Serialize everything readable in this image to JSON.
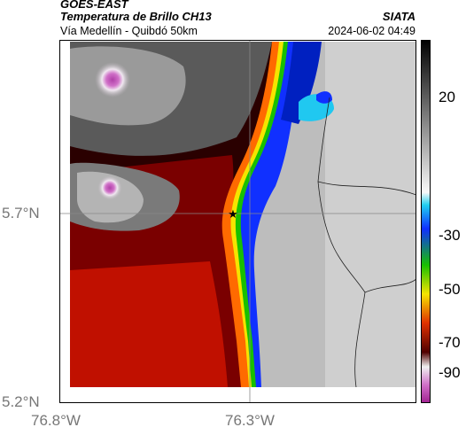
{
  "header": {
    "satellite": "GOES-EAST",
    "product": "Temperatura de Brillo CH13",
    "region": "Vía Medellín - Quibdó 50km",
    "agency": "SIATA",
    "timestamp": "2024-06-02 04:49"
  },
  "axes": {
    "y_ticks": [
      {
        "label": "5.7°N",
        "value": 5.7
      },
      {
        "label": "5.2°N",
        "value": 5.2
      }
    ],
    "x_ticks": [
      {
        "label": "76.8°W",
        "value": -76.8
      },
      {
        "label": "76.3°W",
        "value": -76.3
      }
    ]
  },
  "colorbar": {
    "ticks": [
      {
        "label": "20",
        "value": 20
      },
      {
        "label": "-30",
        "value": -30
      },
      {
        "label": "-50",
        "value": -50
      },
      {
        "label": "-70",
        "value": -70
      },
      {
        "label": "-90",
        "value": -90
      }
    ]
  },
  "marker": {
    "icon": "star-icon",
    "symbol": "★"
  },
  "colors": {
    "frame": "#000000",
    "grid": "#888888",
    "warm_gray": "#c8c8c8",
    "dark_red": "#6b0000",
    "red": "#d81b00",
    "yellow": "#f5e400",
    "green": "#18c000",
    "blue": "#1030ff",
    "cyan": "#20c8f0",
    "magenta": "#c040b0"
  }
}
